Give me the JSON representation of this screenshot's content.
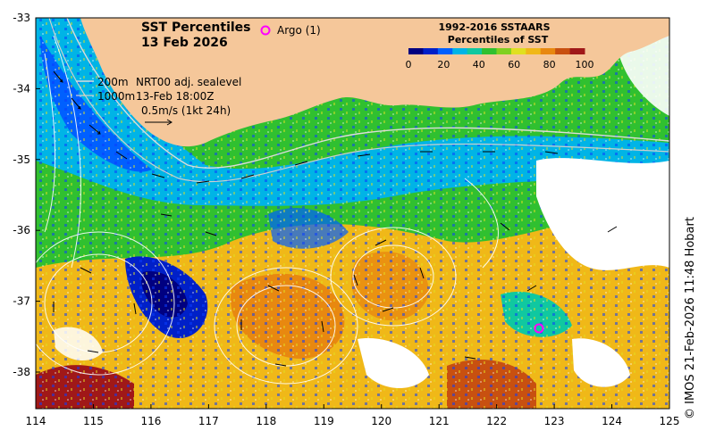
{
  "title": {
    "line1": "SST Percentiles",
    "line2": "13 Feb 2026"
  },
  "argo": {
    "symbol": "o",
    "label": "Argo (1)",
    "color": "#ff00ff"
  },
  "colorbar": {
    "title1": "1992-2016 SSTAARS",
    "title2": "Percentiles of SST",
    "ticks": [
      "0",
      "20",
      "40",
      "60",
      "80",
      "100"
    ],
    "colors": [
      "#000080",
      "#0020c8",
      "#0060ff",
      "#00b4e6",
      "#10c8a0",
      "#30c030",
      "#80d020",
      "#e0e020",
      "#f0b818",
      "#e88810",
      "#c85010",
      "#a01818"
    ]
  },
  "legend": {
    "contour_200": "200m",
    "contour_1000": "1000m",
    "product": "NRT00 adj. sealevel",
    "time": "13-Feb 18:00Z",
    "scale": "0.5m/s (1kt 24h)"
  },
  "axes": {
    "x_ticks": [
      "114",
      "115",
      "116",
      "117",
      "118",
      "119",
      "120",
      "121",
      "122",
      "123",
      "124",
      "125"
    ],
    "y_ticks": [
      "-33",
      "-34",
      "-35",
      "-36",
      "-37",
      "-38"
    ]
  },
  "credit": "© IMOS 21-Feb-2026 11:48 Hobart",
  "colors": {
    "land": "#f5c79a",
    "nodata": "#ffffff"
  }
}
